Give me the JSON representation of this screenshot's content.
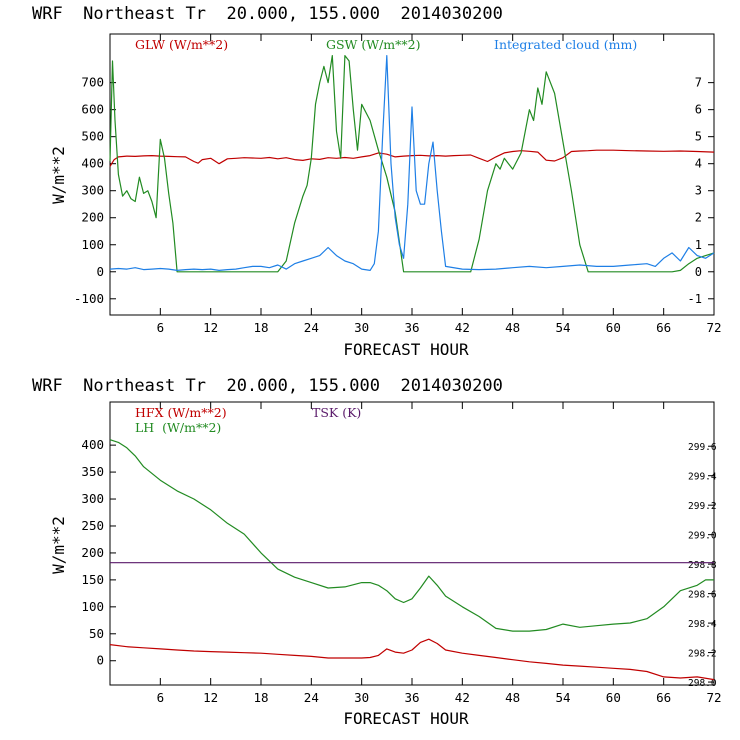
{
  "colors": {
    "red": "#c00000",
    "green": "#228b22",
    "blue": "#1e7fe6",
    "purple": "#5a1a6a",
    "axis": "#000000"
  },
  "chart_data": [
    {
      "type": "line",
      "title": "WRF  Northeast Tr  20.000, 155.000  2014030200",
      "xlabel": "FORECAST HOUR",
      "ylabel": "W/m**2",
      "xlim": [
        0,
        72
      ],
      "ylim": [
        -160,
        880
      ],
      "y2lim": [
        -1.6,
        8.8
      ],
      "xticks": [
        6,
        12,
        18,
        24,
        30,
        36,
        42,
        48,
        54,
        60,
        66,
        72
      ],
      "xtick_labels": [
        "6",
        "12",
        "18",
        "24",
        "30",
        "36",
        "42",
        "48",
        "54",
        "60",
        "66",
        "72"
      ],
      "yticks": [
        -100,
        0,
        100,
        200,
        300,
        400,
        500,
        600,
        700
      ],
      "ytick_labels": [
        "-100",
        "0",
        "100",
        "200",
        "300",
        "400",
        "500",
        "600",
        "700"
      ],
      "y2ticks": [
        -1,
        0,
        1,
        2,
        3,
        4,
        5,
        6,
        7
      ],
      "y2tick_labels": [
        "-1",
        "0",
        "1",
        "2",
        "3",
        "4",
        "5",
        "6",
        "7"
      ],
      "legend": [
        "GLW (W/m**2)",
        "GSW (W/m**2)",
        "Integrated cloud (mm)"
      ],
      "series": [
        {
          "name": "GLW (W/m**2)",
          "color": "red",
          "axis": "left",
          "x": [
            0,
            0.5,
            1,
            2,
            3,
            4,
            5,
            6,
            7,
            8,
            9,
            10,
            10.5,
            11,
            12,
            13,
            14,
            15,
            16,
            17,
            18,
            19,
            20,
            21,
            22,
            23,
            24,
            25,
            26,
            27,
            28,
            29,
            30,
            31,
            32,
            33,
            34,
            35,
            36,
            37,
            38,
            39,
            40,
            41,
            42,
            43,
            44,
            45,
            46,
            47,
            48,
            49,
            50,
            51,
            52,
            53,
            54,
            55,
            56,
            57,
            58,
            60,
            62,
            64,
            66,
            68,
            70,
            72
          ],
          "y": [
            390,
            415,
            425,
            428,
            427,
            429,
            430,
            428,
            427,
            426,
            425,
            408,
            402,
            415,
            420,
            400,
            418,
            420,
            422,
            421,
            420,
            423,
            418,
            422,
            415,
            412,
            418,
            416,
            422,
            420,
            423,
            420,
            425,
            430,
            440,
            435,
            425,
            428,
            430,
            431,
            429,
            430,
            428,
            430,
            431,
            432,
            420,
            408,
            425,
            440,
            445,
            448,
            446,
            443,
            413,
            410,
            422,
            445,
            447,
            448,
            450,
            450,
            448,
            447,
            446,
            447,
            445,
            443
          ]
        },
        {
          "name": "GSW (W/m**2)",
          "color": "green",
          "axis": "left",
          "x": [
            0,
            0.3,
            0.6,
            1,
            1.5,
            2,
            2.5,
            3,
            3.5,
            4,
            4.5,
            5,
            5.5,
            6,
            6.5,
            7,
            7.5,
            8,
            20,
            21,
            22,
            23,
            23.5,
            24,
            24.5,
            25,
            25.5,
            26,
            26.5,
            27,
            27.5,
            28,
            28.5,
            29,
            29.5,
            30,
            31,
            32,
            33,
            34,
            35,
            43,
            44,
            45,
            46,
            46.5,
            47,
            47.5,
            48,
            49,
            50,
            50.5,
            51,
            51.5,
            52,
            53,
            54,
            55,
            56,
            57,
            66,
            67,
            68,
            69,
            70,
            71,
            72
          ],
          "y": [
            410,
            780,
            560,
            360,
            280,
            300,
            270,
            260,
            350,
            290,
            300,
            260,
            200,
            490,
            420,
            290,
            180,
            0,
            0,
            40,
            180,
            280,
            320,
            420,
            620,
            700,
            760,
            700,
            800,
            520,
            420,
            800,
            780,
            600,
            450,
            620,
            560,
            450,
            350,
            220,
            0,
            0,
            120,
            300,
            400,
            380,
            420,
            400,
            380,
            440,
            600,
            560,
            680,
            620,
            740,
            660,
            480,
            300,
            100,
            0,
            0,
            0,
            5,
            30,
            50,
            60,
            70
          ]
        },
        {
          "name": "Integrated cloud (mm)",
          "color": "blue",
          "axis": "right",
          "x": [
            0,
            1,
            2,
            3,
            4,
            5,
            6,
            7,
            8,
            9,
            10,
            11,
            12,
            13,
            14,
            15,
            16,
            17,
            18,
            19,
            20,
            21,
            22,
            23,
            24,
            25,
            26,
            27,
            28,
            29,
            30,
            31,
            31.5,
            32,
            32.5,
            33,
            33.5,
            34,
            34.5,
            35,
            35.5,
            36,
            36.5,
            37,
            37.5,
            38,
            38.5,
            39,
            39.5,
            40,
            42,
            44,
            46,
            48,
            50,
            52,
            54,
            56,
            58,
            60,
            62,
            64,
            65,
            66,
            67,
            68,
            69,
            70,
            71,
            72
          ],
          "y": [
            0.1,
            0.12,
            0.1,
            0.15,
            0.08,
            0.1,
            0.12,
            0.1,
            0.05,
            0.08,
            0.1,
            0.08,
            0.1,
            0.05,
            0.08,
            0.1,
            0.15,
            0.2,
            0.2,
            0.15,
            0.25,
            0.1,
            0.3,
            0.4,
            0.5,
            0.6,
            0.9,
            0.6,
            0.4,
            0.3,
            0.1,
            0.05,
            0.3,
            1.5,
            5,
            8,
            4,
            2,
            1,
            0.5,
            2.5,
            6.1,
            3,
            2.5,
            2.5,
            4,
            4.8,
            3,
            1.5,
            0.2,
            0.1,
            0.08,
            0.1,
            0.15,
            0.2,
            0.15,
            0.2,
            0.25,
            0.2,
            0.2,
            0.25,
            0.3,
            0.2,
            0.5,
            0.7,
            0.4,
            0.9,
            0.6,
            0.5,
            0.7
          ]
        }
      ]
    },
    {
      "type": "line",
      "title": "WRF  Northeast Tr  20.000, 155.000  2014030200",
      "xlabel": "FORECAST HOUR",
      "ylabel": "W/m**2",
      "xlim": [
        0,
        72
      ],
      "ylim": [
        -45,
        480
      ],
      "y2lim": [
        297.98,
        299.9
      ],
      "xticks": [
        6,
        12,
        18,
        24,
        30,
        36,
        42,
        48,
        54,
        60,
        66,
        72
      ],
      "xtick_labels": [
        "6",
        "12",
        "18",
        "24",
        "30",
        "36",
        "42",
        "48",
        "54",
        "60",
        "66",
        "72"
      ],
      "yticks": [
        0,
        50,
        100,
        150,
        200,
        250,
        300,
        350,
        400
      ],
      "ytick_labels": [
        "0",
        "50",
        "100",
        "150",
        "200",
        "250",
        "300",
        "350",
        "400"
      ],
      "y2ticks": [
        298.0,
        298.2,
        298.4,
        298.6,
        298.8,
        299.0,
        299.2,
        299.4,
        299.6
      ],
      "y2tick_labels": [
        "298.0",
        "298.2",
        "298.4",
        "298.6",
        "298.8",
        "299.0",
        "299.2",
        "299.4",
        "299.6"
      ],
      "legend": [
        "HFX (W/m**2)",
        "LH  (W/m**2)",
        "TSK (K)"
      ],
      "series": [
        {
          "name": "HFX (W/m**2)",
          "color": "red",
          "axis": "left",
          "x": [
            0,
            2,
            4,
            6,
            8,
            10,
            12,
            14,
            16,
            18,
            20,
            22,
            24,
            26,
            28,
            30,
            31,
            32,
            33,
            34,
            35,
            36,
            37,
            38,
            39,
            40,
            42,
            44,
            46,
            48,
            50,
            52,
            54,
            56,
            58,
            60,
            62,
            64,
            66,
            68,
            70,
            72
          ],
          "y": [
            30,
            26,
            24,
            22,
            20,
            18,
            17,
            16,
            15,
            14,
            12,
            10,
            8,
            5,
            5,
            5,
            6,
            10,
            22,
            16,
            14,
            20,
            34,
            40,
            32,
            20,
            14,
            10,
            6,
            2,
            -2,
            -5,
            -8,
            -10,
            -12,
            -14,
            -16,
            -20,
            -30,
            -32,
            -30,
            -35
          ]
        },
        {
          "name": "LH  (W/m**2)",
          "color": "green",
          "axis": "left",
          "x": [
            0,
            1,
            2,
            3,
            4,
            6,
            8,
            10,
            12,
            14,
            16,
            18,
            20,
            22,
            24,
            26,
            28,
            30,
            31,
            32,
            33,
            34,
            35,
            36,
            37,
            38,
            39,
            40,
            42,
            44,
            46,
            48,
            50,
            52,
            54,
            56,
            58,
            60,
            62,
            64,
            66,
            68,
            70,
            71,
            72
          ],
          "y": [
            410,
            405,
            395,
            380,
            360,
            335,
            315,
            300,
            280,
            255,
            235,
            200,
            170,
            155,
            145,
            135,
            137,
            145,
            145,
            140,
            130,
            115,
            108,
            115,
            135,
            157,
            140,
            120,
            100,
            82,
            60,
            55,
            55,
            58,
            68,
            62,
            65,
            68,
            70,
            78,
            100,
            130,
            140,
            150,
            150
          ]
        },
        {
          "name": "TSK (K)",
          "color": "purple",
          "axis": "right",
          "x": [
            0,
            72
          ],
          "y": [
            298.81,
            298.81
          ]
        }
      ]
    }
  ]
}
